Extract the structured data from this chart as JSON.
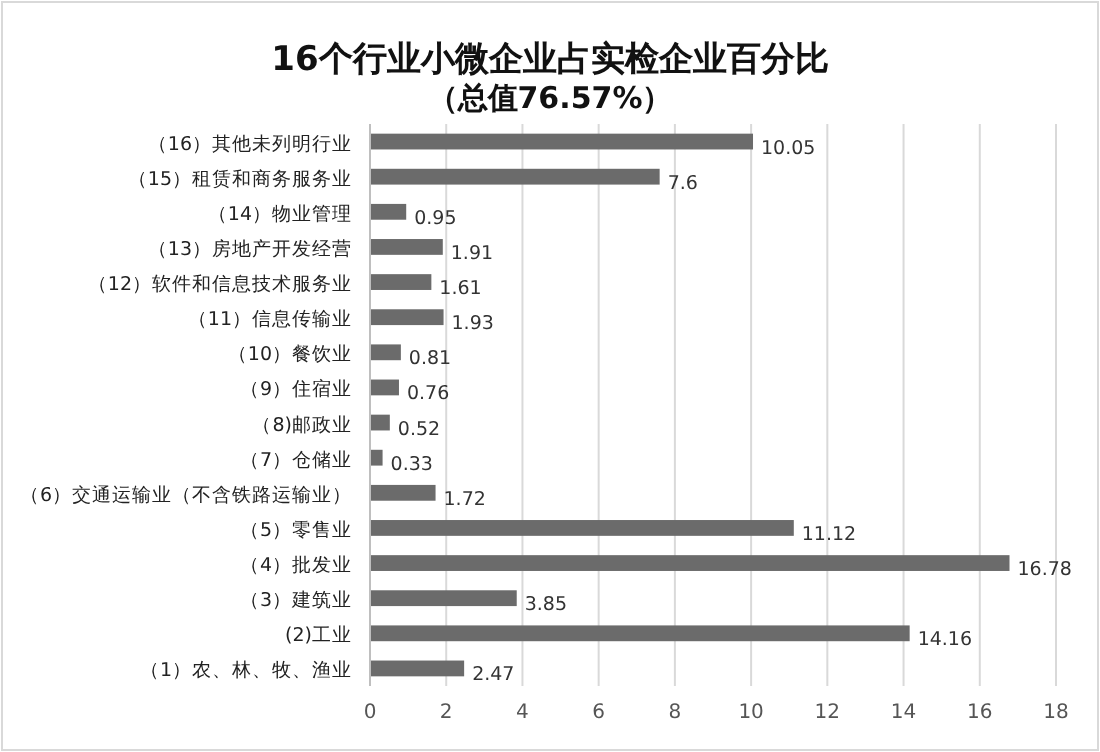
{
  "chart_data": {
    "type": "bar",
    "orientation": "horizontal",
    "title": "16个行业小微企业占实检企业百分比",
    "subtitle": "（总值76.57%）",
    "categories": [
      "（16）其他未列明行业",
      "（15）租赁和商务服务业",
      "（14）物业管理",
      "（13）房地产开发经营",
      "（12）软件和信息技术服务业",
      "（11）信息传输业",
      "（10）餐饮业",
      "（9）住宿业",
      "（8)邮政业",
      "（7）仓储业",
      "（6）交通运输业（不含铁路运输业）",
      "（5）零售业",
      "（4）批发业",
      "（3）建筑业",
      "(2)工业",
      "（1）农、林、牧、渔业"
    ],
    "values": [
      10.05,
      7.6,
      0.95,
      1.91,
      1.61,
      1.93,
      0.81,
      0.76,
      0.52,
      0.33,
      1.72,
      11.12,
      16.78,
      3.85,
      14.16,
      2.47
    ],
    "color": "#6b6b6b",
    "xlim": [
      0,
      18
    ],
    "xticks": [
      0,
      2,
      4,
      6,
      8,
      10,
      12,
      14,
      16,
      18
    ],
    "grid": "x",
    "data_labels": true
  }
}
